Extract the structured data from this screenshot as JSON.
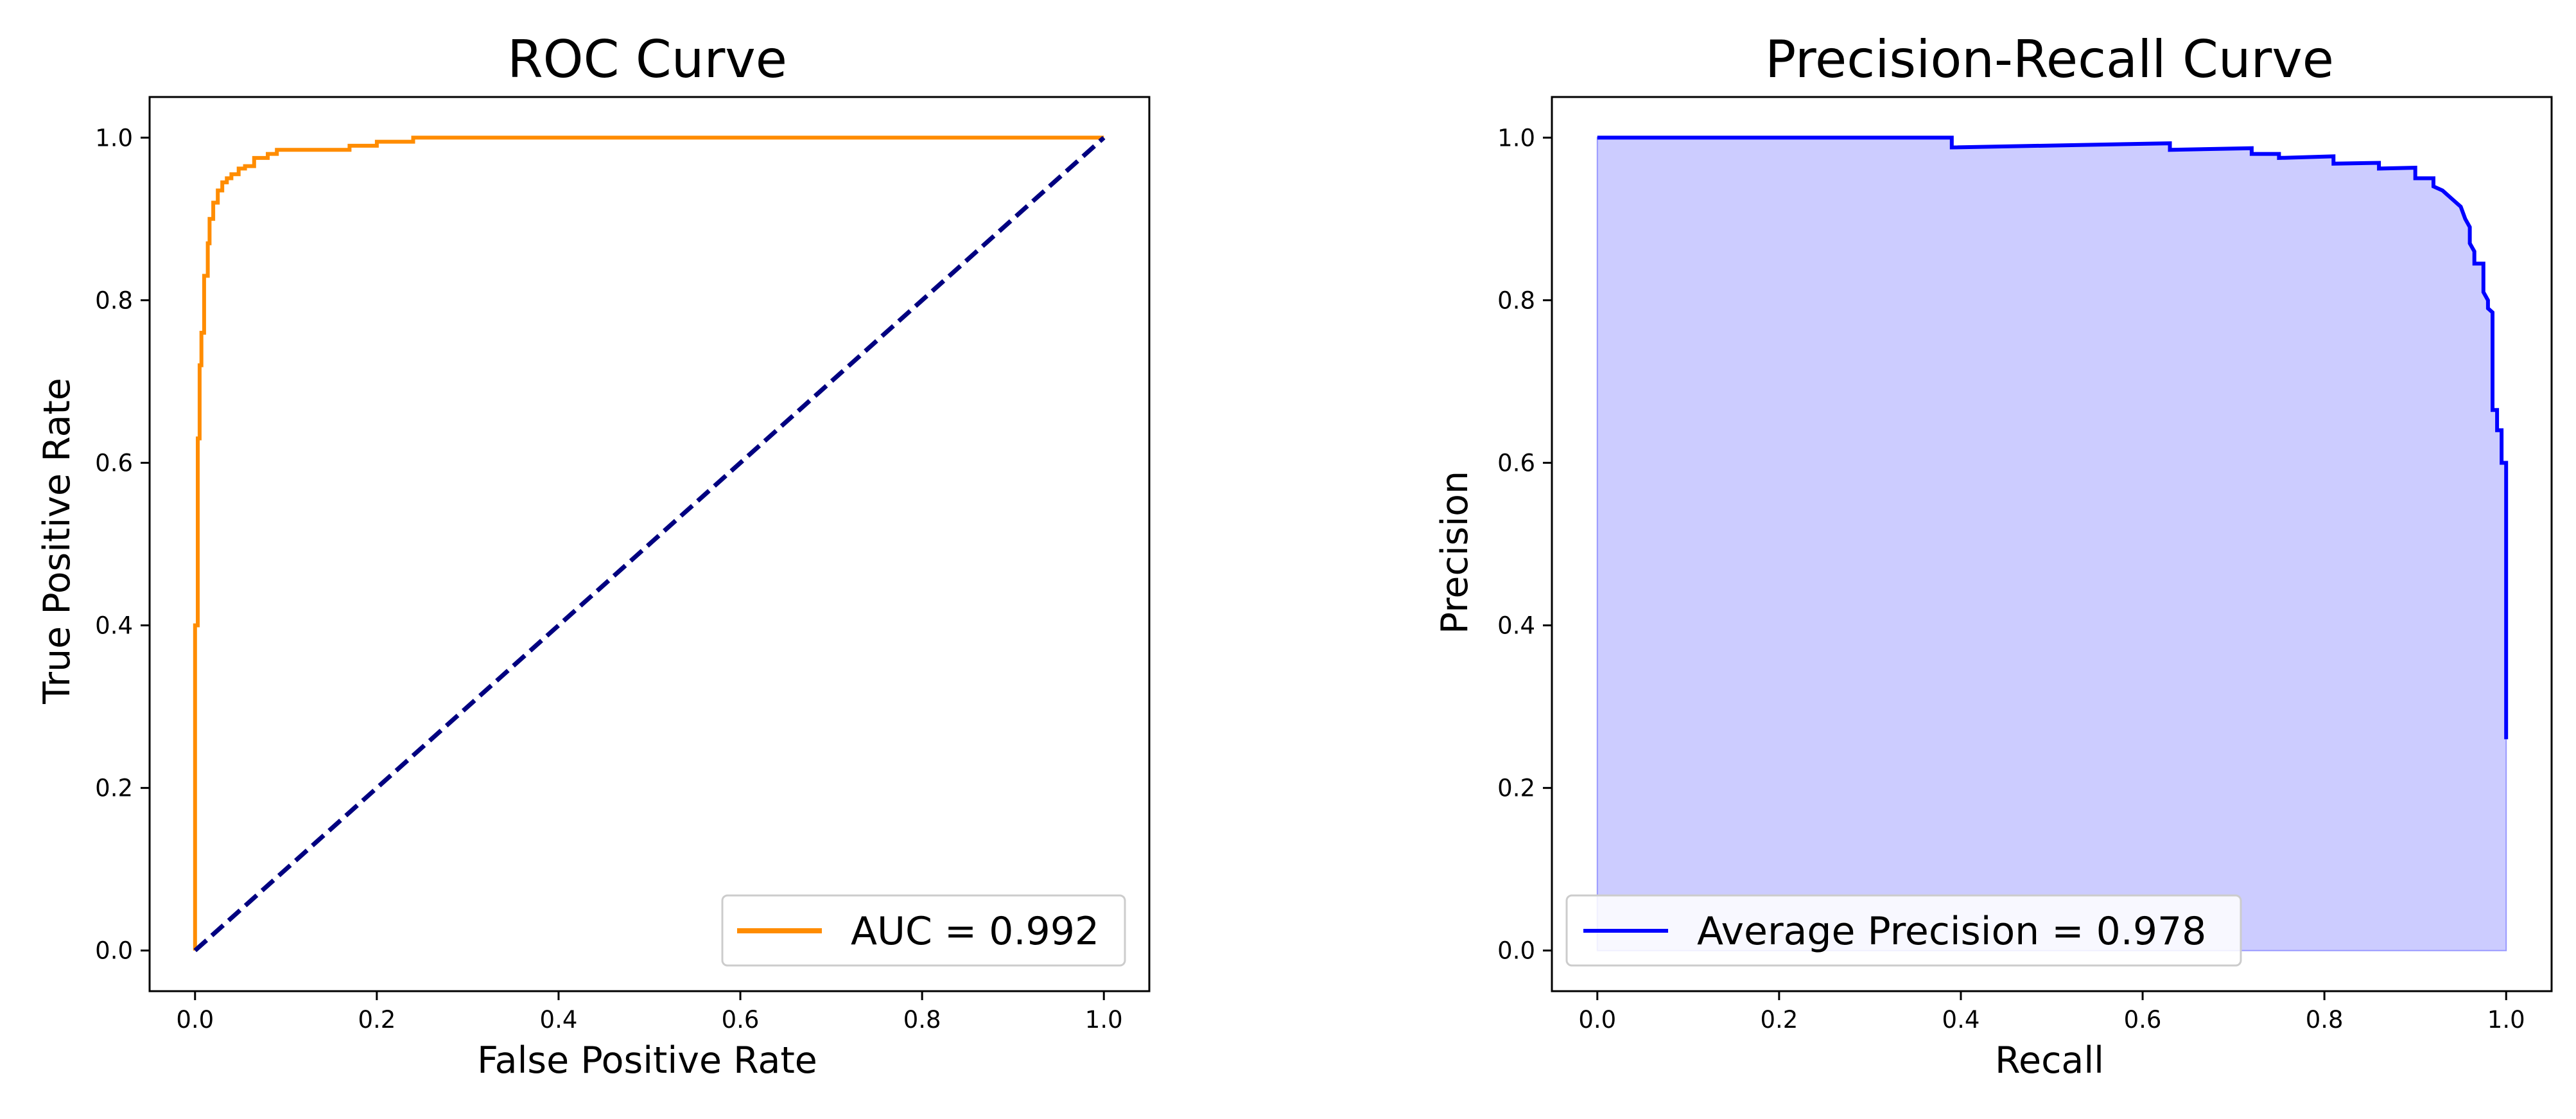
{
  "chart_data": [
    {
      "id": "roc",
      "type": "line",
      "title": "ROC Curve",
      "xlabel": "False Positive Rate",
      "ylabel": "True Positive Rate",
      "xlim": [
        -0.05,
        1.05
      ],
      "ylim": [
        -0.05,
        1.05
      ],
      "xticks": [
        "0.0",
        "0.2",
        "0.4",
        "0.6",
        "0.8",
        "1.0"
      ],
      "yticks": [
        "0.0",
        "0.2",
        "0.4",
        "0.6",
        "0.8",
        "1.0"
      ],
      "grid": false,
      "legend": {
        "position": "lower-right",
        "entries": [
          "AUC = 0.992"
        ]
      },
      "series": [
        {
          "name": "AUC = 0.992",
          "color": "#ff8c00",
          "style": "solid",
          "points": [
            [
              0.0,
              0.0
            ],
            [
              0.0,
              0.4
            ],
            [
              0.003,
              0.4
            ],
            [
              0.003,
              0.63
            ],
            [
              0.005,
              0.63
            ],
            [
              0.005,
              0.72
            ],
            [
              0.007,
              0.72
            ],
            [
              0.007,
              0.76
            ],
            [
              0.01,
              0.76
            ],
            [
              0.01,
              0.83
            ],
            [
              0.014,
              0.83
            ],
            [
              0.014,
              0.87
            ],
            [
              0.016,
              0.87
            ],
            [
              0.016,
              0.9
            ],
            [
              0.02,
              0.9
            ],
            [
              0.02,
              0.92
            ],
            [
              0.025,
              0.92
            ],
            [
              0.025,
              0.935
            ],
            [
              0.03,
              0.935
            ],
            [
              0.03,
              0.945
            ],
            [
              0.035,
              0.945
            ],
            [
              0.035,
              0.95
            ],
            [
              0.04,
              0.95
            ],
            [
              0.04,
              0.955
            ],
            [
              0.048,
              0.955
            ],
            [
              0.048,
              0.962
            ],
            [
              0.055,
              0.962
            ],
            [
              0.055,
              0.965
            ],
            [
              0.065,
              0.965
            ],
            [
              0.065,
              0.975
            ],
            [
              0.08,
              0.975
            ],
            [
              0.08,
              0.98
            ],
            [
              0.09,
              0.98
            ],
            [
              0.09,
              0.985
            ],
            [
              0.17,
              0.985
            ],
            [
              0.17,
              0.99
            ],
            [
              0.2,
              0.99
            ],
            [
              0.2,
              0.995
            ],
            [
              0.24,
              0.995
            ],
            [
              0.24,
              1.0
            ],
            [
              1.0,
              1.0
            ]
          ]
        },
        {
          "name": "",
          "color": "#000080",
          "style": "dashed",
          "points": [
            [
              0.0,
              0.0
            ],
            [
              1.0,
              1.0
            ]
          ]
        }
      ]
    },
    {
      "id": "pr",
      "type": "area",
      "title": "Precision-Recall Curve",
      "xlabel": "Recall",
      "ylabel": "Precision",
      "xlim": [
        -0.05,
        1.05
      ],
      "ylim": [
        -0.05,
        1.05
      ],
      "xticks": [
        "0.0",
        "0.2",
        "0.4",
        "0.6",
        "0.8",
        "1.0"
      ],
      "yticks": [
        "0.0",
        "0.2",
        "0.4",
        "0.6",
        "0.8",
        "1.0"
      ],
      "grid": false,
      "legend": {
        "position": "lower-left",
        "entries": [
          "Average Precision = 0.978"
        ]
      },
      "series": [
        {
          "name": "Average Precision = 0.978",
          "color": "#0000ff",
          "fill": "#ccccff",
          "points": [
            [
              0.0,
              1.0
            ],
            [
              0.39,
              1.0
            ],
            [
              0.39,
              0.988
            ],
            [
              0.63,
              0.993
            ],
            [
              0.63,
              0.985
            ],
            [
              0.72,
              0.987
            ],
            [
              0.72,
              0.98
            ],
            [
              0.75,
              0.98
            ],
            [
              0.75,
              0.975
            ],
            [
              0.81,
              0.977
            ],
            [
              0.81,
              0.968
            ],
            [
              0.86,
              0.969
            ],
            [
              0.86,
              0.962
            ],
            [
              0.9,
              0.963
            ],
            [
              0.9,
              0.95
            ],
            [
              0.92,
              0.95
            ],
            [
              0.92,
              0.94
            ],
            [
              0.93,
              0.935
            ],
            [
              0.94,
              0.925
            ],
            [
              0.95,
              0.915
            ],
            [
              0.955,
              0.9
            ],
            [
              0.96,
              0.89
            ],
            [
              0.96,
              0.87
            ],
            [
              0.965,
              0.86
            ],
            [
              0.965,
              0.845
            ],
            [
              0.975,
              0.845
            ],
            [
              0.975,
              0.81
            ],
            [
              0.98,
              0.8
            ],
            [
              0.98,
              0.79
            ],
            [
              0.985,
              0.785
            ],
            [
              0.985,
              0.665
            ],
            [
              0.99,
              0.665
            ],
            [
              0.99,
              0.64
            ],
            [
              0.995,
              0.64
            ],
            [
              0.995,
              0.6
            ],
            [
              1.0,
              0.6
            ],
            [
              1.0,
              0.26
            ]
          ]
        }
      ]
    }
  ]
}
